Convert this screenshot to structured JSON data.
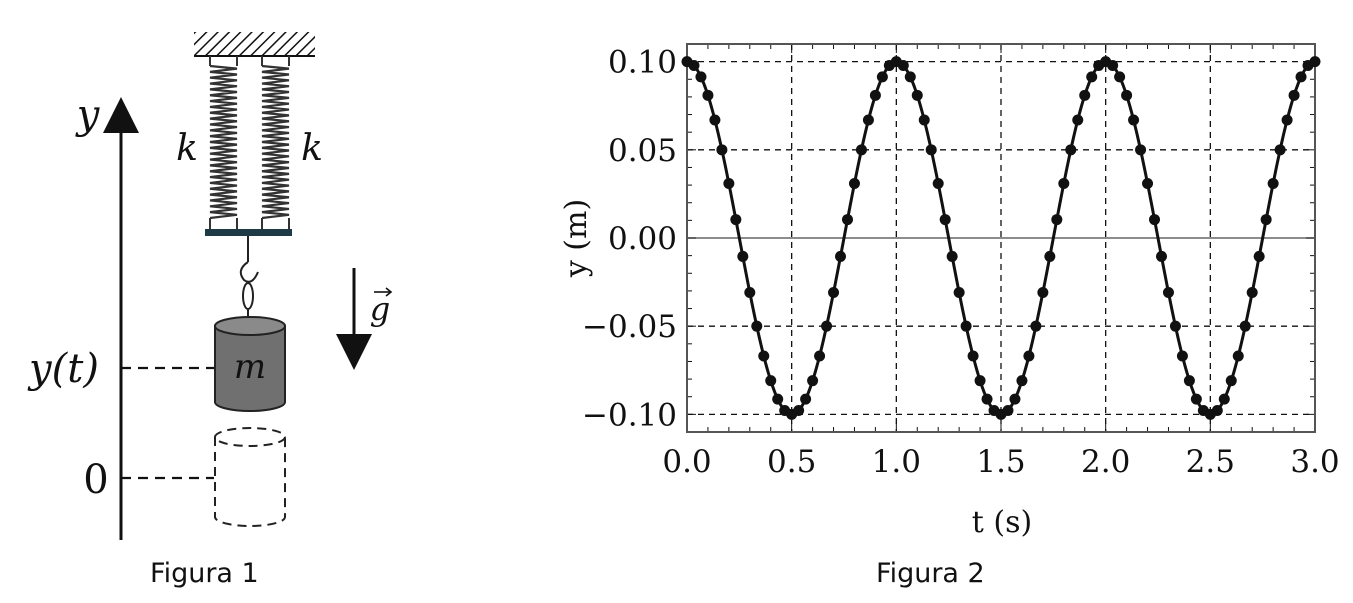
{
  "figure1": {
    "caption": "Figura 1",
    "axis_label": "y",
    "spring_left_label": "k",
    "spring_right_label": "k",
    "mass_label": "m",
    "gravity_label": "g",
    "position_label": "y(t)",
    "origin_label": "0"
  },
  "figure2": {
    "caption": "Figura 2",
    "chart_data": {
      "type": "line",
      "xlabel": "t (s)",
      "ylabel": "y (m)",
      "xlim": [
        0.0,
        3.0
      ],
      "ylim": [
        -0.11,
        0.11
      ],
      "xticks": [
        "0.0",
        "0.5",
        "1.0",
        "1.5",
        "2.0",
        "2.5",
        "3.0"
      ],
      "yticks": [
        "0.10",
        "0.05",
        "0.00",
        "−0.05",
        "−0.10"
      ],
      "ytick_values": [
        0.1,
        0.05,
        0.0,
        -0.05,
        -0.1
      ],
      "xtick_values": [
        0.0,
        0.5,
        1.0,
        1.5,
        2.0,
        2.5,
        3.0
      ],
      "grid": true,
      "series": [
        {
          "model": "y = A cos(2π t / T)",
          "amplitude": 0.1,
          "period": 1.0,
          "t_start": 0.0,
          "t_end": 3.0,
          "marker_count": 91
        }
      ]
    }
  }
}
